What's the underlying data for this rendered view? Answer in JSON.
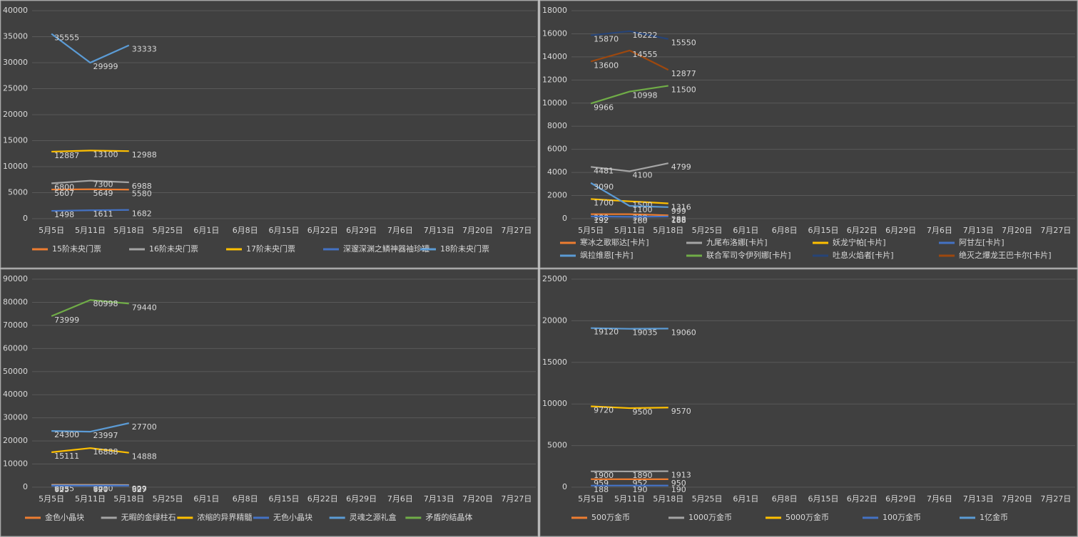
{
  "chart_data": [
    {
      "type": "line",
      "categories": [
        "5月5日",
        "5月11日",
        "5月18日",
        "5月25日",
        "6月1日",
        "6月8日",
        "6月15日",
        "6月22日",
        "6月29日",
        "7月6日",
        "7月13日",
        "7月20日",
        "7月27日"
      ],
      "ylim": [
        0,
        40000
      ],
      "yticks": [
        0,
        5000,
        10000,
        15000,
        20000,
        25000,
        30000,
        35000,
        40000
      ],
      "grid": true,
      "legend": "bottom",
      "series": [
        {
          "name": "15阶未央门票",
          "color": "#ed7d31",
          "values": [
            5607,
            5649,
            5580,
            null,
            null,
            null,
            null,
            null,
            null,
            null,
            null,
            null,
            null
          ]
        },
        {
          "name": "16阶未央门票",
          "color": "#a5a5a5",
          "values": [
            6800,
            7300,
            6988,
            null,
            null,
            null,
            null,
            null,
            null,
            null,
            null,
            null,
            null
          ]
        },
        {
          "name": "17阶未央门票",
          "color": "#ffc000",
          "values": [
            12887,
            13100,
            12988,
            null,
            null,
            null,
            null,
            null,
            null,
            null,
            null,
            null,
            null
          ]
        },
        {
          "name": "深邃深渊之鳞神器袖珍罐",
          "color": "#4472c4",
          "values": [
            1498,
            1611,
            1682,
            null,
            null,
            null,
            null,
            null,
            null,
            null,
            null,
            null,
            null
          ]
        },
        {
          "name": "18阶未央门票",
          "color": "#5b9bd5",
          "values": [
            35555,
            29999,
            33333,
            null,
            null,
            null,
            null,
            null,
            null,
            null,
            null,
            null,
            null
          ]
        }
      ]
    },
    {
      "type": "line",
      "categories": [
        "5月5日",
        "5月11日",
        "5月18日",
        "5月25日",
        "6月1日",
        "6月8日",
        "6月15日",
        "6月22日",
        "6月29日",
        "7月6日",
        "7月13日",
        "7月20日",
        "7月27日"
      ],
      "ylim": [
        0,
        18000
      ],
      "yticks": [
        0,
        2000,
        4000,
        6000,
        8000,
        10000,
        12000,
        14000,
        16000,
        18000
      ],
      "grid": true,
      "legend": "bottom",
      "series": [
        {
          "name": "寒冰之歌耶达[卡片]",
          "color": "#ed7d31",
          "values": [
            388,
            388,
            288,
            null,
            null,
            null,
            null,
            null,
            null,
            null,
            null,
            null,
            null
          ]
        },
        {
          "name": "九尾布洛娜[卡片]",
          "color": "#a5a5a5",
          "values": [
            4481,
            4100,
            4799,
            null,
            null,
            null,
            null,
            null,
            null,
            null,
            null,
            null,
            null
          ]
        },
        {
          "name": "妖龙宁帕[卡片]",
          "color": "#ffc000",
          "values": [
            1700,
            1500,
            1316,
            null,
            null,
            null,
            null,
            null,
            null,
            null,
            null,
            null,
            null
          ]
        },
        {
          "name": "阿甘左[卡片]",
          "color": "#4472c4",
          "values": [
            192,
            160,
            188,
            null,
            null,
            null,
            null,
            null,
            null,
            null,
            null,
            null,
            null
          ]
        },
        {
          "name": "飒拉维恩[卡片]",
          "color": "#5b9bd5",
          "values": [
            3090,
            1100,
            999,
            null,
            null,
            null,
            null,
            null,
            null,
            null,
            null,
            null,
            null
          ]
        },
        {
          "name": "联合军司令伊列娜[卡片]",
          "color": "#70ad47",
          "values": [
            9966,
            10998,
            11500,
            null,
            null,
            null,
            null,
            null,
            null,
            null,
            null,
            null,
            null
          ]
        },
        {
          "name": "吐息火焰者[卡片]",
          "color": "#264478",
          "values": [
            15870,
            16222,
            15550,
            null,
            null,
            null,
            null,
            null,
            null,
            null,
            null,
            null,
            null
          ]
        },
        {
          "name": "绝灭之爆龙王巴卡尔[卡片]",
          "color": "#9e480e",
          "values": [
            13600,
            14555,
            12877,
            null,
            null,
            null,
            null,
            null,
            null,
            null,
            null,
            null,
            null
          ]
        }
      ]
    },
    {
      "type": "line",
      "categories": [
        "5月5日",
        "5月11日",
        "5月18日",
        "5月25日",
        "6月1日",
        "6月8日",
        "6月15日",
        "6月22日",
        "6月29日",
        "7月6日",
        "7月13日",
        "7月20日",
        "7月27日"
      ],
      "ylim": [
        0,
        90000
      ],
      "yticks": [
        0,
        10000,
        20000,
        30000,
        40000,
        50000,
        60000,
        70000,
        80000,
        90000
      ],
      "grid": true,
      "legend": "bottom",
      "series": [
        {
          "name": "金色小晶块",
          "color": "#ed7d31",
          "values": [
            1035,
            1010,
            929,
            null,
            null,
            null,
            null,
            null,
            null,
            null,
            null,
            null,
            null
          ]
        },
        {
          "name": "无暇的金绿柱石",
          "color": "#a5a5a5",
          "values": [
            935,
            940,
            909,
            null,
            null,
            null,
            null,
            null,
            null,
            null,
            null,
            null,
            null
          ]
        },
        {
          "name": "浓缩的异界精髓",
          "color": "#ffc000",
          "values": [
            15111,
            16888,
            14888,
            null,
            null,
            null,
            null,
            null,
            null,
            null,
            null,
            null,
            null
          ]
        },
        {
          "name": "无色小晶块",
          "color": "#4472c4",
          "values": [
            625,
            620,
            627,
            null,
            null,
            null,
            null,
            null,
            null,
            null,
            null,
            null,
            null
          ]
        },
        {
          "name": "灵魂之源礼盒",
          "color": "#5b9bd5",
          "values": [
            24300,
            23997,
            27700,
            null,
            null,
            null,
            null,
            null,
            null,
            null,
            null,
            null,
            null
          ]
        },
        {
          "name": "矛盾的结晶体",
          "color": "#70ad47",
          "values": [
            73999,
            80998,
            79440,
            null,
            null,
            null,
            null,
            null,
            null,
            null,
            null,
            null,
            null
          ]
        }
      ]
    },
    {
      "type": "line",
      "categories": [
        "5月5日",
        "5月11日",
        "5月18日",
        "5月25日",
        "6月1日",
        "6月8日",
        "6月15日",
        "6月22日",
        "6月29日",
        "7月6日",
        "7月13日",
        "7月20日",
        "7月27日"
      ],
      "ylim": [
        0,
        25000
      ],
      "yticks": [
        0,
        5000,
        10000,
        15000,
        20000,
        25000
      ],
      "grid": true,
      "legend": "bottom",
      "series": [
        {
          "name": "500万金币",
          "color": "#ed7d31",
          "values": [
            959,
            952,
            950,
            null,
            null,
            null,
            null,
            null,
            null,
            null,
            null,
            null,
            null
          ]
        },
        {
          "name": "1000万金币",
          "color": "#a5a5a5",
          "values": [
            1900,
            1890,
            1913,
            null,
            null,
            null,
            null,
            null,
            null,
            null,
            null,
            null,
            null
          ]
        },
        {
          "name": "5000万金币",
          "color": "#ffc000",
          "values": [
            9720,
            9500,
            9570,
            null,
            null,
            null,
            null,
            null,
            null,
            null,
            null,
            null,
            null
          ]
        },
        {
          "name": "100万金币",
          "color": "#4472c4",
          "values": [
            188,
            190,
            190,
            null,
            null,
            null,
            null,
            null,
            null,
            null,
            null,
            null,
            null
          ]
        },
        {
          "name": "1亿金币",
          "color": "#5b9bd5",
          "values": [
            19120,
            19035,
            19060,
            null,
            null,
            null,
            null,
            null,
            null,
            null,
            null,
            null,
            null
          ]
        }
      ]
    }
  ]
}
